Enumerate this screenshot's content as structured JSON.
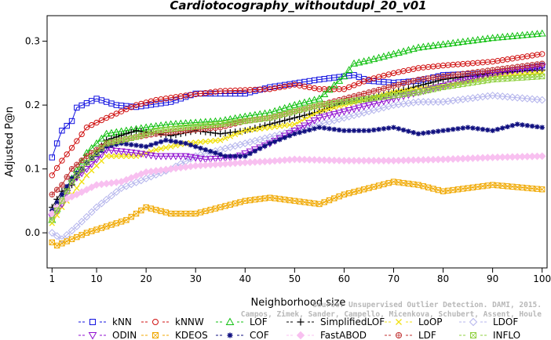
{
  "chart_data": {
    "type": "line",
    "title": "Cardiotocography_withoutdupl_20_v01",
    "xlabel": "Neighborhood size",
    "ylabel": "Adjusted P@n",
    "xlim": [
      0,
      101
    ],
    "ylim": [
      -0.055,
      0.34
    ],
    "xticks": [
      1,
      10,
      20,
      30,
      40,
      50,
      60,
      70,
      80,
      90,
      100
    ],
    "yticks": [
      0.0,
      0.1,
      0.2,
      0.3
    ],
    "ytick_labels": [
      "0.0",
      "0.1",
      "0.2",
      "0.3"
    ],
    "grid": false,
    "legend_position": "bottom",
    "watermark": [
      "Source: Unsupervised Outlier Detection. DAMI, 2015.",
      "Campos, Zimek, Sander, Campello, Micenkova, Schubert, Assent, Houle"
    ],
    "series": [
      {
        "name": "kNN",
        "color": "#1010e0",
        "marker": "square",
        "anchors": [
          [
            1,
            0.118
          ],
          [
            2,
            0.14
          ],
          [
            3,
            0.16
          ],
          [
            5,
            0.175
          ],
          [
            6,
            0.196
          ],
          [
            10,
            0.21
          ],
          [
            14,
            0.2
          ],
          [
            18,
            0.197
          ],
          [
            25,
            0.205
          ],
          [
            30,
            0.218
          ],
          [
            40,
            0.218
          ],
          [
            45,
            0.228
          ],
          [
            55,
            0.24
          ],
          [
            62,
            0.247
          ],
          [
            65,
            0.238
          ],
          [
            70,
            0.235
          ],
          [
            75,
            0.238
          ],
          [
            80,
            0.247
          ],
          [
            90,
            0.25
          ],
          [
            100,
            0.262
          ]
        ]
      },
      {
        "name": "kNNW",
        "color": "#d01010",
        "marker": "circle",
        "anchors": [
          [
            1,
            0.09
          ],
          [
            3,
            0.113
          ],
          [
            5,
            0.133
          ],
          [
            8,
            0.165
          ],
          [
            12,
            0.18
          ],
          [
            18,
            0.2
          ],
          [
            22,
            0.208
          ],
          [
            28,
            0.215
          ],
          [
            35,
            0.222
          ],
          [
            45,
            0.225
          ],
          [
            50,
            0.232
          ],
          [
            55,
            0.225
          ],
          [
            60,
            0.225
          ],
          [
            65,
            0.24
          ],
          [
            70,
            0.25
          ],
          [
            75,
            0.258
          ],
          [
            80,
            0.262
          ],
          [
            85,
            0.265
          ],
          [
            90,
            0.268
          ],
          [
            100,
            0.28
          ]
        ]
      },
      {
        "name": "LOF",
        "color": "#10c010",
        "marker": "triangle-up",
        "anchors": [
          [
            1,
            0.02
          ],
          [
            3,
            0.055
          ],
          [
            5,
            0.085
          ],
          [
            8,
            0.125
          ],
          [
            12,
            0.155
          ],
          [
            20,
            0.165
          ],
          [
            25,
            0.17
          ],
          [
            35,
            0.175
          ],
          [
            40,
            0.182
          ],
          [
            45,
            0.188
          ],
          [
            50,
            0.2
          ],
          [
            55,
            0.21
          ],
          [
            60,
            0.245
          ],
          [
            62,
            0.265
          ],
          [
            65,
            0.27
          ],
          [
            70,
            0.28
          ],
          [
            75,
            0.29
          ],
          [
            80,
            0.295
          ],
          [
            90,
            0.305
          ],
          [
            100,
            0.312
          ]
        ]
      },
      {
        "name": "SimplifiedLOF",
        "color": "#000000",
        "marker": "plus",
        "anchors": [
          [
            1,
            0.04
          ],
          [
            3,
            0.065
          ],
          [
            5,
            0.075
          ],
          [
            8,
            0.11
          ],
          [
            12,
            0.145
          ],
          [
            18,
            0.16
          ],
          [
            25,
            0.152
          ],
          [
            30,
            0.16
          ],
          [
            35,
            0.155
          ],
          [
            40,
            0.16
          ],
          [
            45,
            0.17
          ],
          [
            50,
            0.18
          ],
          [
            55,
            0.19
          ],
          [
            60,
            0.205
          ],
          [
            65,
            0.21
          ],
          [
            70,
            0.22
          ],
          [
            75,
            0.23
          ],
          [
            80,
            0.24
          ],
          [
            90,
            0.25
          ],
          [
            100,
            0.255
          ]
        ]
      },
      {
        "name": "LoOP",
        "color": "#f0e010",
        "marker": "x",
        "anchors": [
          [
            1,
            0.015
          ],
          [
            3,
            0.04
          ],
          [
            5,
            0.06
          ],
          [
            8,
            0.09
          ],
          [
            12,
            0.12
          ],
          [
            18,
            0.12
          ],
          [
            22,
            0.13
          ],
          [
            28,
            0.14
          ],
          [
            35,
            0.145
          ],
          [
            40,
            0.16
          ],
          [
            45,
            0.165
          ],
          [
            50,
            0.17
          ],
          [
            55,
            0.19
          ],
          [
            60,
            0.2
          ],
          [
            65,
            0.21
          ],
          [
            70,
            0.22
          ],
          [
            75,
            0.225
          ],
          [
            80,
            0.23
          ],
          [
            90,
            0.245
          ],
          [
            100,
            0.25
          ]
        ]
      },
      {
        "name": "LDOF",
        "color": "#b4b4ec",
        "marker": "diamond",
        "anchors": [
          [
            1,
            0.0
          ],
          [
            3,
            -0.01
          ],
          [
            6,
            0.01
          ],
          [
            10,
            0.04
          ],
          [
            15,
            0.07
          ],
          [
            20,
            0.085
          ],
          [
            25,
            0.1
          ],
          [
            30,
            0.12
          ],
          [
            35,
            0.13
          ],
          [
            40,
            0.14
          ],
          [
            45,
            0.15
          ],
          [
            50,
            0.16
          ],
          [
            55,
            0.17
          ],
          [
            60,
            0.18
          ],
          [
            65,
            0.19
          ],
          [
            70,
            0.2
          ],
          [
            75,
            0.205
          ],
          [
            80,
            0.205
          ],
          [
            85,
            0.21
          ],
          [
            90,
            0.215
          ],
          [
            100,
            0.208
          ]
        ]
      },
      {
        "name": "ODIN",
        "color": "#9010d0",
        "marker": "triangle-down",
        "anchors": [
          [
            1,
            0.025
          ],
          [
            3,
            0.045
          ],
          [
            5,
            0.08
          ],
          [
            8,
            0.1
          ],
          [
            12,
            0.13
          ],
          [
            18,
            0.125
          ],
          [
            22,
            0.12
          ],
          [
            28,
            0.12
          ],
          [
            32,
            0.115
          ],
          [
            38,
            0.118
          ],
          [
            45,
            0.14
          ],
          [
            50,
            0.16
          ],
          [
            55,
            0.18
          ],
          [
            60,
            0.19
          ],
          [
            65,
            0.2
          ],
          [
            70,
            0.21
          ],
          [
            75,
            0.22
          ],
          [
            80,
            0.23
          ],
          [
            90,
            0.25
          ],
          [
            100,
            0.26
          ]
        ]
      },
      {
        "name": "KDEOS",
        "color": "#f0a800",
        "marker": "boxx",
        "anchors": [
          [
            1,
            -0.015
          ],
          [
            2,
            -0.02
          ],
          [
            5,
            -0.01
          ],
          [
            8,
            0.0
          ],
          [
            12,
            0.01
          ],
          [
            16,
            0.02
          ],
          [
            20,
            0.04
          ],
          [
            25,
            0.03
          ],
          [
            30,
            0.03
          ],
          [
            35,
            0.04
          ],
          [
            40,
            0.05
          ],
          [
            45,
            0.055
          ],
          [
            50,
            0.05
          ],
          [
            55,
            0.045
          ],
          [
            60,
            0.06
          ],
          [
            65,
            0.07
          ],
          [
            70,
            0.08
          ],
          [
            75,
            0.075
          ],
          [
            80,
            0.065
          ],
          [
            85,
            0.07
          ],
          [
            90,
            0.075
          ],
          [
            100,
            0.068
          ]
        ]
      },
      {
        "name": "COF",
        "color": "#101080",
        "marker": "asterisk",
        "anchors": [
          [
            1,
            0.035
          ],
          [
            3,
            0.06
          ],
          [
            5,
            0.085
          ],
          [
            8,
            0.11
          ],
          [
            12,
            0.135
          ],
          [
            15,
            0.14
          ],
          [
            20,
            0.135
          ],
          [
            24,
            0.145
          ],
          [
            28,
            0.14
          ],
          [
            32,
            0.13
          ],
          [
            36,
            0.12
          ],
          [
            40,
            0.12
          ],
          [
            45,
            0.14
          ],
          [
            50,
            0.155
          ],
          [
            55,
            0.165
          ],
          [
            60,
            0.16
          ],
          [
            65,
            0.16
          ],
          [
            70,
            0.165
          ],
          [
            75,
            0.155
          ],
          [
            80,
            0.16
          ],
          [
            85,
            0.165
          ],
          [
            90,
            0.16
          ],
          [
            95,
            0.17
          ],
          [
            100,
            0.165
          ]
        ]
      },
      {
        "name": "FastABOD",
        "color": "#f8c0f0",
        "marker": "diamond-filled",
        "anchors": [
          [
            1,
            0.03
          ],
          [
            3,
            0.05
          ],
          [
            6,
            0.06
          ],
          [
            10,
            0.075
          ],
          [
            15,
            0.08
          ],
          [
            20,
            0.095
          ],
          [
            25,
            0.1
          ],
          [
            30,
            0.105
          ],
          [
            40,
            0.11
          ],
          [
            45,
            0.112
          ],
          [
            50,
            0.115
          ],
          [
            60,
            0.113
          ],
          [
            70,
            0.113
          ],
          [
            80,
            0.115
          ],
          [
            90,
            0.118
          ],
          [
            100,
            0.12
          ]
        ]
      },
      {
        "name": "LDF",
        "color": "#c03030",
        "marker": "circle-plus",
        "anchors": [
          [
            1,
            0.06
          ],
          [
            3,
            0.075
          ],
          [
            5,
            0.1
          ],
          [
            8,
            0.12
          ],
          [
            12,
            0.14
          ],
          [
            18,
            0.15
          ],
          [
            22,
            0.155
          ],
          [
            28,
            0.16
          ],
          [
            35,
            0.165
          ],
          [
            40,
            0.175
          ],
          [
            45,
            0.18
          ],
          [
            50,
            0.19
          ],
          [
            55,
            0.2
          ],
          [
            60,
            0.21
          ],
          [
            65,
            0.22
          ],
          [
            70,
            0.23
          ],
          [
            75,
            0.24
          ],
          [
            80,
            0.245
          ],
          [
            90,
            0.255
          ],
          [
            100,
            0.265
          ]
        ]
      },
      {
        "name": "INFLO",
        "color": "#90d040",
        "marker": "boxx",
        "anchors": [
          [
            1,
            0.02
          ],
          [
            3,
            0.05
          ],
          [
            5,
            0.08
          ],
          [
            8,
            0.11
          ],
          [
            12,
            0.14
          ],
          [
            18,
            0.15
          ],
          [
            22,
            0.16
          ],
          [
            28,
            0.165
          ],
          [
            35,
            0.17
          ],
          [
            40,
            0.175
          ],
          [
            45,
            0.18
          ],
          [
            50,
            0.19
          ],
          [
            55,
            0.2
          ],
          [
            60,
            0.205
          ],
          [
            65,
            0.21
          ],
          [
            70,
            0.215
          ],
          [
            75,
            0.22
          ],
          [
            80,
            0.228
          ],
          [
            90,
            0.24
          ],
          [
            100,
            0.245
          ]
        ]
      }
    ]
  }
}
